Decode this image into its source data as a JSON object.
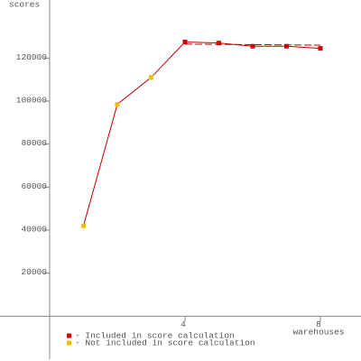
{
  "chart_data": {
    "type": "line",
    "y_label": "scores",
    "x_label": "warehouses",
    "x": [
      1,
      2,
      3,
      4,
      5,
      6,
      7,
      8
    ],
    "values": [
      42000,
      98500,
      111000,
      127500,
      127000,
      125500,
      125500,
      124500
    ],
    "included": [
      false,
      false,
      false,
      true,
      true,
      true,
      true,
      true
    ],
    "line_color": "#c00000",
    "score_line": {
      "x": [
        4,
        8
      ],
      "values": [
        126500,
        126000
      ],
      "color": "#c00000"
    },
    "legend": [
      {
        "name": "- Included in score calculation",
        "color": "#d00000"
      },
      {
        "name": "- Not included in score calculation",
        "color": "#f0c000"
      }
    ],
    "xlim": [
      0,
      9.2
    ],
    "xticks": [
      4,
      8
    ],
    "ylim": [
      -20000,
      147000
    ],
    "yticks": [
      20000,
      40000,
      60000,
      80000,
      100000,
      120000
    ]
  }
}
